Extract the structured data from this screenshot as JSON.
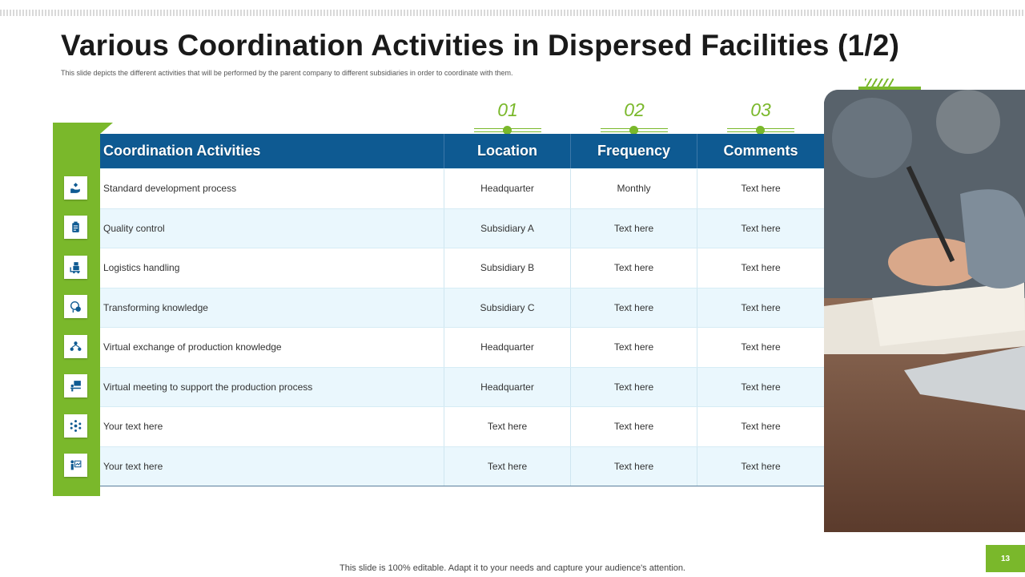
{
  "slide": {
    "title": "Various Coordination Activities in Dispersed Facilities (1/2)",
    "subtitle": "This slide depicts the different activities that will be performed by the parent company to different subsidiaries in order to coordinate with them.",
    "footer": "This slide is 100% editable. Adapt it to your needs and capture your audience's attention.",
    "page_number": "13"
  },
  "markers": [
    "01",
    "02",
    "03"
  ],
  "table": {
    "headers": [
      "Coordination Activities",
      "Location",
      "Frequency",
      "Comments"
    ],
    "rows": [
      {
        "icon": "hand-care-icon",
        "activity": "Standard development process",
        "location": "Headquarter",
        "frequency": "Monthly",
        "comments": "Text here"
      },
      {
        "icon": "clipboard-icon",
        "activity": "Quality control",
        "location": "Subsidiary A",
        "frequency": "Text here",
        "comments": "Text here"
      },
      {
        "icon": "boxes-cart-icon",
        "activity": "Logistics handling",
        "location": "Subsidiary B",
        "frequency": "Text here",
        "comments": "Text here"
      },
      {
        "icon": "head-knowledge-icon",
        "activity": "Transforming knowledge",
        "location": "Subsidiary C",
        "frequency": "Text here",
        "comments": "Text here"
      },
      {
        "icon": "network-people-icon",
        "activity": "Virtual exchange of production knowledge",
        "location": "Headquarter",
        "frequency": "Text here",
        "comments": "Text here"
      },
      {
        "icon": "video-meeting-icon",
        "activity": "Virtual meeting to support the production process",
        "location": "Headquarter",
        "frequency": "Text here",
        "comments": "Text here"
      },
      {
        "icon": "hub-nodes-icon",
        "activity": "Your text here",
        "location": "Text here",
        "frequency": "Text here",
        "comments": "Text here"
      },
      {
        "icon": "presenter-chart-icon",
        "activity": "Your text here",
        "location": "Text here",
        "frequency": "Text here",
        "comments": "Text here"
      }
    ]
  },
  "colors": {
    "accent_green": "#7ab82b",
    "header_blue": "#0e5a92",
    "row_alt": "#eaf7fd"
  }
}
